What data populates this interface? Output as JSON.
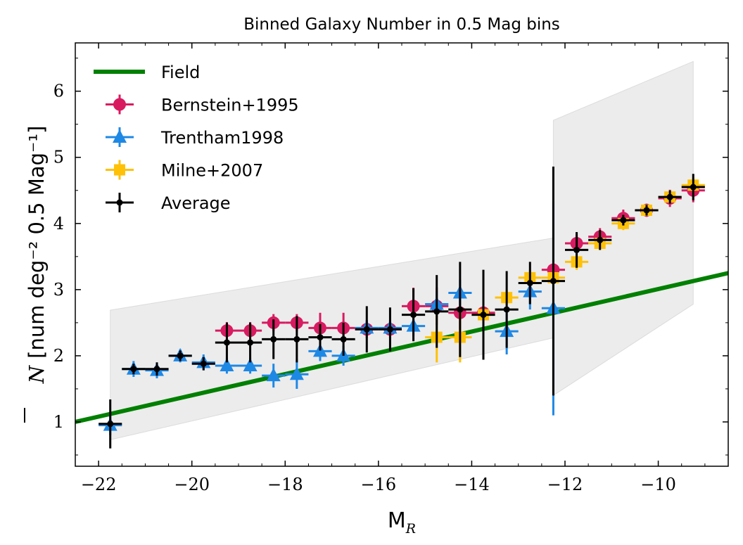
{
  "chart_data": {
    "type": "scatter",
    "title": "Binned Galaxy Number in 0.5 Mag bins",
    "xlabel": "M",
    "xlabel_sub": "R",
    "ylabel": "[num deg⁻² 0.5 Mag⁻¹]",
    "ylabel_symbol": "N",
    "xlim": [
      -22.5,
      -8.5
    ],
    "ylim": [
      0.33,
      6.73
    ],
    "xticks": [
      -22,
      -20,
      -18,
      -16,
      -14,
      -12,
      -10
    ],
    "xtick_labels": [
      "−22",
      "−20",
      "−18",
      "−16",
      "−14",
      "−12",
      "−10"
    ],
    "yticks": [
      1,
      2,
      3,
      4,
      5,
      6
    ],
    "ytick_labels": [
      "1",
      "2",
      "3",
      "4",
      "5",
      "6"
    ],
    "legend_position": "top-left",
    "field_line": {
      "name": "Field",
      "color": "#008000",
      "x": [
        -22.5,
        -8.5
      ],
      "y": [
        1.0,
        3.25
      ]
    },
    "band": {
      "color": "#e0e0e0",
      "segment1": {
        "x": [
          -21.75,
          -12.25
        ],
        "upper": [
          2.69,
          3.78
        ],
        "lower": [
          0.73,
          2.27
        ]
      },
      "segment2": {
        "x": [
          -12.25,
          -9.25
        ],
        "upper": [
          5.56,
          6.45
        ],
        "lower": [
          1.4,
          2.78
        ]
      }
    },
    "series": [
      {
        "name": "Bernstein+1995",
        "color": "#d81b60",
        "marker": "circle",
        "points": [
          {
            "x": -19.25,
            "y": 2.38,
            "e": 0.13
          },
          {
            "x": -18.75,
            "y": 2.38,
            "e": 0.13
          },
          {
            "x": -18.25,
            "y": 2.5,
            "e": 0.13
          },
          {
            "x": -17.75,
            "y": 2.5,
            "e": 0.13
          },
          {
            "x": -17.25,
            "y": 2.42,
            "e": 0.23
          },
          {
            "x": -16.75,
            "y": 2.42,
            "e": 0.23
          },
          {
            "x": -16.25,
            "y": 2.4,
            "e": 0.13
          },
          {
            "x": -15.75,
            "y": 2.4,
            "e": 0.13
          },
          {
            "x": -15.25,
            "y": 2.75,
            "e": 0.28
          },
          {
            "x": -14.75,
            "y": 2.75,
            "e": 0.28
          },
          {
            "x": -14.25,
            "y": 2.65,
            "e": 0.25
          },
          {
            "x": -13.75,
            "y": 2.65,
            "e": 0.25
          },
          {
            "x": -12.25,
            "y": 3.3,
            "e": 0.15
          },
          {
            "x": -11.75,
            "y": 3.7,
            "e": 0.13
          },
          {
            "x": -11.25,
            "y": 3.8,
            "e": 0.13
          },
          {
            "x": -10.75,
            "y": 4.08,
            "e": 0.13
          },
          {
            "x": -10.25,
            "y": 4.2,
            "e": 0.1
          },
          {
            "x": -9.75,
            "y": 4.38,
            "e": 0.13
          },
          {
            "x": -9.25,
            "y": 4.5,
            "e": 0.18
          }
        ]
      },
      {
        "name": "Trentham1998",
        "color": "#1e88e5",
        "marker": "triangle",
        "points": [
          {
            "x": -21.75,
            "y": 0.95,
            "e": 0.15
          },
          {
            "x": -21.25,
            "y": 1.8,
            "e": 0.12
          },
          {
            "x": -20.75,
            "y": 1.78,
            "e": 0.12
          },
          {
            "x": -20.25,
            "y": 2.0,
            "e": 0.1
          },
          {
            "x": -19.75,
            "y": 1.9,
            "e": 0.12
          },
          {
            "x": -19.25,
            "y": 1.85,
            "e": 0.12
          },
          {
            "x": -18.75,
            "y": 1.85,
            "e": 0.12
          },
          {
            "x": -18.25,
            "y": 1.7,
            "e": 0.18
          },
          {
            "x": -17.75,
            "y": 1.72,
            "e": 0.22
          },
          {
            "x": -17.25,
            "y": 2.07,
            "e": 0.15
          },
          {
            "x": -16.75,
            "y": 2.0,
            "e": 0.15
          },
          {
            "x": -16.25,
            "y": 2.42,
            "e": 0.12
          },
          {
            "x": -15.75,
            "y": 2.42,
            "e": 0.12
          },
          {
            "x": -15.25,
            "y": 2.45,
            "e": 0.15
          },
          {
            "x": -14.75,
            "y": 2.78,
            "e": 0.2
          },
          {
            "x": -14.25,
            "y": 2.95,
            "e": 0.2
          },
          {
            "x": -13.25,
            "y": 2.37,
            "e": 0.35
          },
          {
            "x": -12.75,
            "y": 2.97,
            "e": 0.27
          },
          {
            "x": -12.25,
            "y": 2.72,
            "e": 1.62
          }
        ]
      },
      {
        "name": "Milne+2007",
        "color": "#ffc107",
        "marker": "square",
        "points": [
          {
            "x": -14.75,
            "y": 2.28,
            "e": 0.38
          },
          {
            "x": -14.25,
            "y": 2.28,
            "e": 0.38
          },
          {
            "x": -13.75,
            "y": 2.62,
            "e": 0.12
          },
          {
            "x": -13.25,
            "y": 2.88,
            "e": 0.12
          },
          {
            "x": -12.75,
            "y": 3.18,
            "e": 0.12
          },
          {
            "x": -12.25,
            "y": 3.18,
            "e": 0.12
          },
          {
            "x": -11.75,
            "y": 3.42,
            "e": 0.12
          },
          {
            "x": -11.25,
            "y": 3.7,
            "e": 0.1
          },
          {
            "x": -10.75,
            "y": 4.0,
            "e": 0.1
          },
          {
            "x": -10.25,
            "y": 4.2,
            "e": 0.08
          },
          {
            "x": -9.75,
            "y": 4.4,
            "e": 0.1
          },
          {
            "x": -9.25,
            "y": 4.58,
            "e": 0.12
          }
        ]
      },
      {
        "name": "Average",
        "color": "#000000",
        "marker": "dot",
        "points": [
          {
            "x": -21.75,
            "y": 0.97,
            "e": 0.37
          },
          {
            "x": -21.25,
            "y": 1.8,
            "e": 0.08
          },
          {
            "x": -20.75,
            "y": 1.8,
            "e": 0.1
          },
          {
            "x": -20.25,
            "y": 2.0,
            "e": 0.08
          },
          {
            "x": -19.75,
            "y": 1.88,
            "e": 0.1
          },
          {
            "x": -19.25,
            "y": 2.2,
            "e": 0.3
          },
          {
            "x": -18.75,
            "y": 2.2,
            "e": 0.3
          },
          {
            "x": -18.25,
            "y": 2.25,
            "e": 0.3
          },
          {
            "x": -17.75,
            "y": 2.25,
            "e": 0.35
          },
          {
            "x": -17.25,
            "y": 2.28,
            "e": 0.2
          },
          {
            "x": -16.75,
            "y": 2.25,
            "e": 0.25
          },
          {
            "x": -16.25,
            "y": 2.4,
            "e": 0.35
          },
          {
            "x": -15.75,
            "y": 2.4,
            "e": 0.33
          },
          {
            "x": -15.25,
            "y": 2.62,
            "e": 0.4
          },
          {
            "x": -14.75,
            "y": 2.67,
            "e": 0.55
          },
          {
            "x": -14.25,
            "y": 2.7,
            "e": 0.72
          },
          {
            "x": -13.75,
            "y": 2.62,
            "e": 0.68
          },
          {
            "x": -13.25,
            "y": 2.7,
            "e": 0.58
          },
          {
            "x": -12.75,
            "y": 3.1,
            "e": 0.32
          },
          {
            "x": -12.25,
            "y": 3.13,
            "e": 1.73
          },
          {
            "x": -11.75,
            "y": 3.6,
            "e": 0.27
          },
          {
            "x": -11.25,
            "y": 3.75,
            "e": 0.15
          },
          {
            "x": -10.75,
            "y": 4.05,
            "e": 0.08
          },
          {
            "x": -10.25,
            "y": 4.2,
            "e": 0.08
          },
          {
            "x": -9.75,
            "y": 4.4,
            "e": 0.1
          },
          {
            "x": -9.25,
            "y": 4.55,
            "e": 0.2
          }
        ]
      }
    ]
  }
}
